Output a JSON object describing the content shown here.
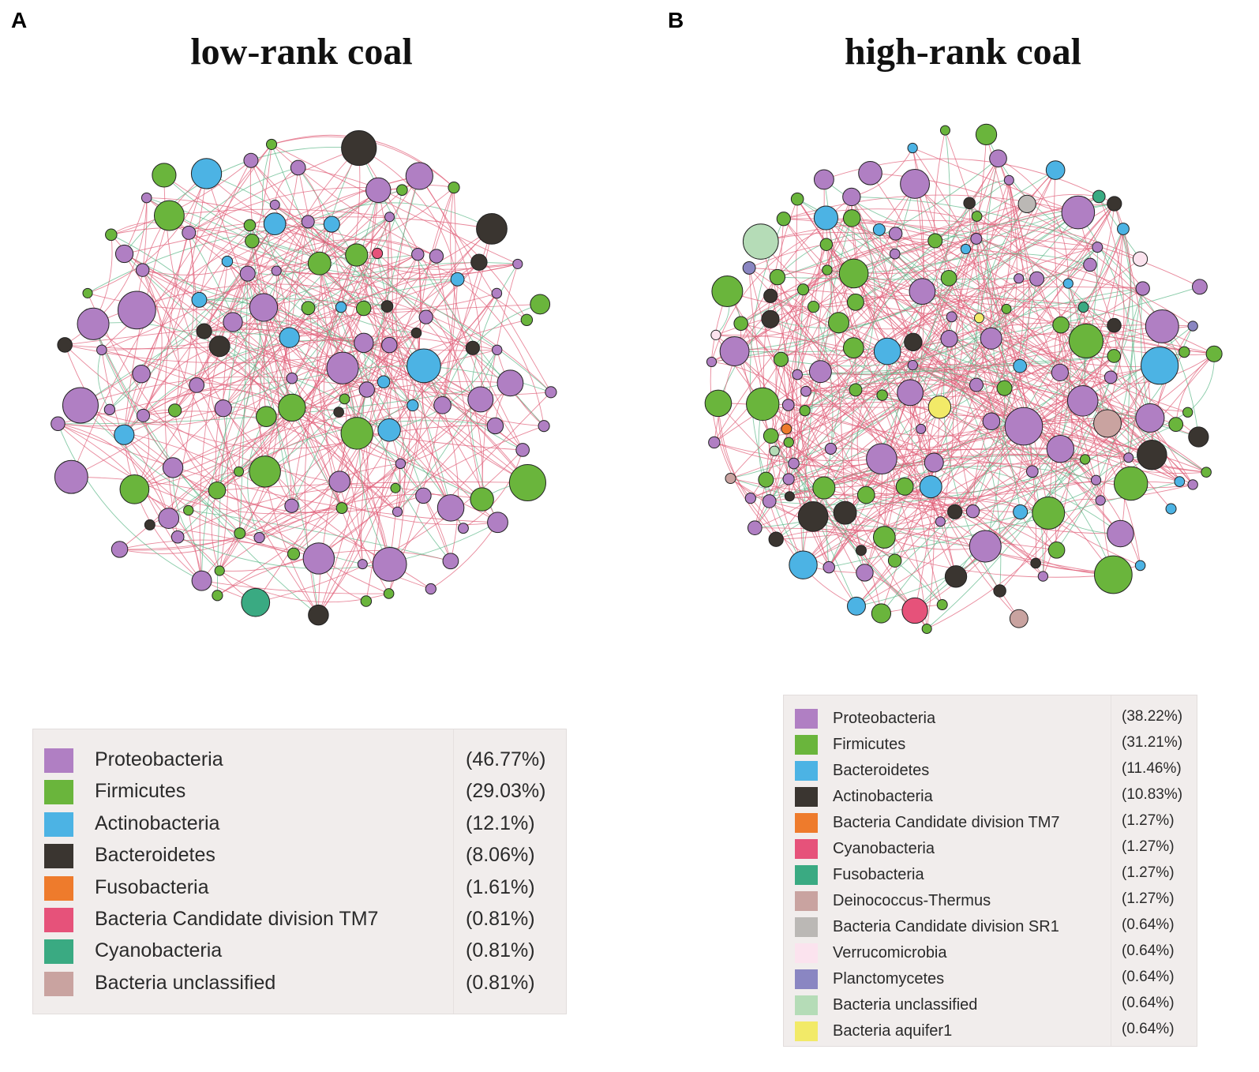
{
  "panels": {
    "A": {
      "letter": "A",
      "title": "low-rank coal",
      "legend": [
        {
          "label": "Proteobacteria",
          "pct": "(46.77%)",
          "color": "#b07fc3"
        },
        {
          "label": "Firmicutes",
          "pct": "(29.03%)",
          "color": "#6ab53c"
        },
        {
          "label": "Actinobacteria",
          "pct": "(12.1%)",
          "color": "#4cb3e4"
        },
        {
          "label": "Bacteroidetes",
          "pct": "(8.06%)",
          "color": "#3a3530"
        },
        {
          "label": "Fusobacteria",
          "pct": "(1.61%)",
          "color": "#ee7b2c"
        },
        {
          "label": "Bacteria Candidate division TM7",
          "pct": "(0.81%)",
          "color": "#e6527a"
        },
        {
          "label": "Cyanobacteria",
          "pct": "(0.81%)",
          "color": "#3aaa82"
        },
        {
          "label": "Bacteria unclassified",
          "pct": "(0.81%)",
          "color": "#c9a3a0"
        }
      ]
    },
    "B": {
      "letter": "B",
      "title": "high-rank coal",
      "legend": [
        {
          "label": "Proteobacteria",
          "pct": "(38.22%)",
          "color": "#b07fc3"
        },
        {
          "label": "Firmicutes",
          "pct": "(31.21%)",
          "color": "#6ab53c"
        },
        {
          "label": "Bacteroidetes",
          "pct": "(11.46%)",
          "color": "#4cb3e4"
        },
        {
          "label": "Actinobacteria",
          "pct": "(10.83%)",
          "color": "#3a3530"
        },
        {
          "label": "Bacteria Candidate division TM7",
          "pct": "(1.27%)",
          "color": "#ee7b2c"
        },
        {
          "label": "Cyanobacteria",
          "pct": "(1.27%)",
          "color": "#e6527a"
        },
        {
          "label": "Fusobacteria",
          "pct": "(1.27%)",
          "color": "#3aaa82"
        },
        {
          "label": "Deinococcus-Thermus",
          "pct": "(1.27%)",
          "color": "#c9a3a0"
        },
        {
          "label": "Bacteria Candidate division SR1",
          "pct": "(0.64%)",
          "color": "#bbb8b5"
        },
        {
          "label": "Verrucomicrobia",
          "pct": "(0.64%)",
          "color": "#fbe3ee"
        },
        {
          "label": "Planctomycetes",
          "pct": "(0.64%)",
          "color": "#8a86c2"
        },
        {
          "label": "Bacteria unclassified",
          "pct": "(0.64%)",
          "color": "#b5dcb7"
        },
        {
          "label": "Bacteria aquifer1",
          "pct": "(0.64%)",
          "color": "#f2ea68"
        }
      ]
    }
  },
  "edge_colors": {
    "positive": "#e0607a",
    "negative": "#5fb88a"
  }
}
